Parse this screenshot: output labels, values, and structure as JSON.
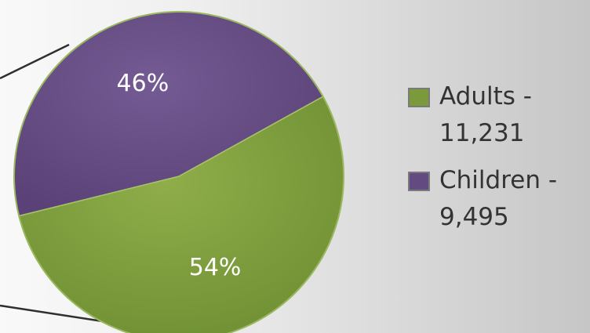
{
  "chart_data": {
    "type": "pie",
    "title": "",
    "slices": [
      {
        "label": "Adults",
        "value": 11231,
        "percent_label": "54%",
        "color": "#7b9a3b",
        "legend_text": "Adults -\n11,231"
      },
      {
        "label": "Children",
        "value": 9495,
        "percent_label": "46%",
        "color": "#634b82",
        "legend_text": "Children -\n9,495"
      }
    ],
    "legend_position": "right",
    "background_color": "#eeeeee"
  }
}
